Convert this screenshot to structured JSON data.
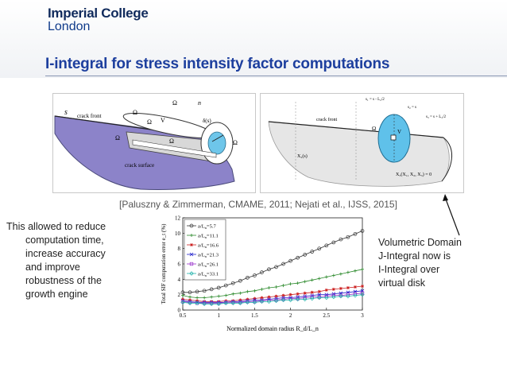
{
  "header": {
    "logo_line1": "Imperial College",
    "logo_line2": "London",
    "title": "I-integral for stress intensity factor computations"
  },
  "figure_left": {
    "labels": {
      "s": "s",
      "crack_front": "crack front",
      "omega_t": "Ω",
      "omega_n": "Ω",
      "omega_c": "Ω",
      "omega": "Ω",
      "v": "V",
      "delta_s": "δ(s)",
      "omega_s": "Ω",
      "omega_m": "Ω",
      "crack_surface": "crack surface",
      "n": "n"
    }
  },
  "figure_right": {
    "labels": {
      "crack_front": "crack front",
      "xi_x3": "X₃(X₁, X₂, X₃) = 0",
      "x2s": "X₂(s)",
      "omega_label": "Ω",
      "v": "V",
      "top_eq1": "s₁ = s - L₂/2",
      "top_eq2": "s₂ = s",
      "top_eq3": "s₃ = s + L₂/2"
    }
  },
  "citation": "[Paluszny & Zimmerman, CMAME, 2011; Nejati et al., IJSS, 2015]",
  "left_text": {
    "line1": "This allowed to reduce",
    "line2": "computation time,",
    "line3": "increase accuracy",
    "line4": "and improve",
    "line5": "robustness of the",
    "line6": "growth engine"
  },
  "right_text": {
    "line1": "Volumetric Domain",
    "line2": "J-Integral now is",
    "line3": "I-Integral over",
    "line4": "virtual disk"
  },
  "chart_data": {
    "type": "line",
    "xlabel": "Normalized domain radius R_d/L_n",
    "ylabel": "Total SIF computation error e_t (%)",
    "xlim": [
      0.5,
      3
    ],
    "ylim": [
      0,
      12
    ],
    "xticks": [
      "0.5",
      "1",
      "1.5",
      "2",
      "2.5",
      "3"
    ],
    "yticks": [
      "0",
      "2",
      "4",
      "6",
      "8",
      "10",
      "12"
    ],
    "x": [
      0.5,
      0.6,
      0.7,
      0.8,
      0.9,
      1.0,
      1.1,
      1.2,
      1.3,
      1.4,
      1.5,
      1.6,
      1.7,
      1.8,
      1.9,
      2.0,
      2.1,
      2.2,
      2.3,
      2.4,
      2.5,
      2.6,
      2.7,
      2.8,
      2.9,
      3.0
    ],
    "series": [
      {
        "name": "a/L_n=5.7",
        "legend": "a/L",
        "sub": "n",
        "suffix": "=5.7",
        "color": "#333333",
        "marker": "circle",
        "values": [
          2.3,
          2.3,
          2.4,
          2.5,
          2.7,
          2.9,
          3.2,
          3.5,
          3.8,
          4.2,
          4.5,
          4.9,
          5.3,
          5.6,
          6.0,
          6.4,
          6.8,
          7.2,
          7.6,
          8.0,
          8.4,
          8.8,
          9.2,
          9.5,
          9.9,
          10.3
        ]
      },
      {
        "name": "a/L_n=11.1",
        "legend": "a/L",
        "sub": "n",
        "suffix": "=11.1",
        "color": "#2e8b2e",
        "marker": "plus",
        "values": [
          1.9,
          1.7,
          1.6,
          1.6,
          1.7,
          1.8,
          1.9,
          2.1,
          2.2,
          2.4,
          2.5,
          2.7,
          2.9,
          3.0,
          3.2,
          3.4,
          3.5,
          3.7,
          3.9,
          4.1,
          4.3,
          4.5,
          4.7,
          4.9,
          5.1,
          5.3
        ]
      },
      {
        "name": "a/L_n=16.6",
        "legend": "a/L",
        "sub": "n",
        "suffix": "=16.6",
        "color": "#cc2020",
        "marker": "star",
        "values": [
          1.4,
          1.3,
          1.2,
          1.1,
          1.1,
          1.1,
          1.2,
          1.2,
          1.3,
          1.4,
          1.5,
          1.6,
          1.7,
          1.8,
          1.9,
          2.0,
          2.1,
          2.2,
          2.3,
          2.4,
          2.6,
          2.7,
          2.8,
          2.9,
          3.0,
          3.1
        ]
      },
      {
        "name": "a/L_n=21.3",
        "legend": "a/L",
        "sub": "n",
        "suffix": "=21.3",
        "color": "#2222cc",
        "marker": "x",
        "values": [
          1.2,
          1.1,
          1.0,
          1.0,
          1.0,
          1.0,
          1.0,
          1.1,
          1.1,
          1.2,
          1.3,
          1.3,
          1.4,
          1.5,
          1.6,
          1.6,
          1.7,
          1.8,
          1.9,
          2.0,
          2.0,
          2.1,
          2.2,
          2.3,
          2.4,
          2.5
        ]
      },
      {
        "name": "a/L_n=26.1",
        "legend": "a/L",
        "sub": "n",
        "suffix": "=26.1",
        "color": "#9932cc",
        "marker": "square",
        "values": [
          1.1,
          1.0,
          0.9,
          0.9,
          0.9,
          0.9,
          1.0,
          1.0,
          1.0,
          1.1,
          1.1,
          1.2,
          1.3,
          1.3,
          1.4,
          1.5,
          1.5,
          1.6,
          1.7,
          1.7,
          1.8,
          1.9,
          1.9,
          2.0,
          2.1,
          2.2
        ]
      },
      {
        "name": "a/L_n=33.1",
        "legend": "a/L",
        "sub": "n",
        "suffix": "=33.1",
        "color": "#20b2aa",
        "marker": "diamond",
        "values": [
          1.0,
          0.9,
          0.9,
          0.8,
          0.8,
          0.8,
          0.9,
          0.9,
          0.9,
          1.0,
          1.0,
          1.1,
          1.1,
          1.2,
          1.3,
          1.3,
          1.4,
          1.4,
          1.5,
          1.6,
          1.6,
          1.7,
          1.8,
          1.8,
          1.9,
          2.0
        ]
      }
    ]
  }
}
